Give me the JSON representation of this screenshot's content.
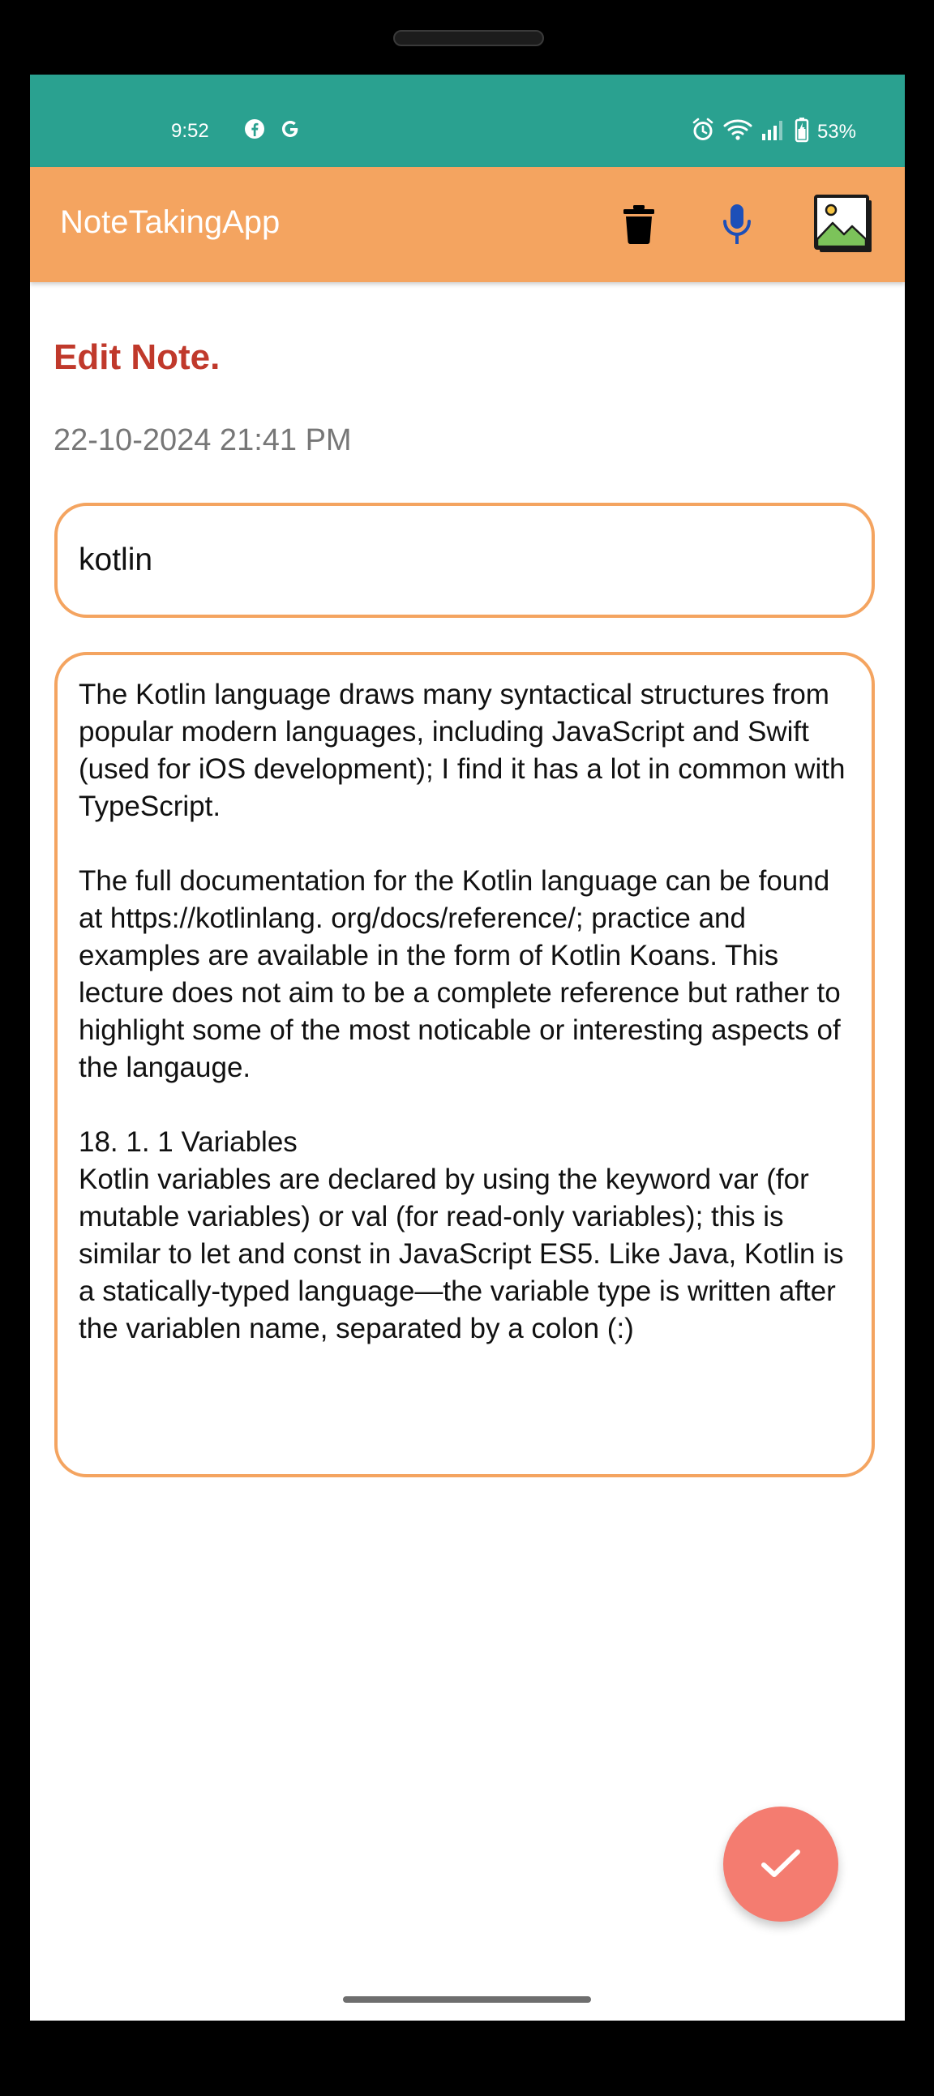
{
  "status_bar": {
    "time": "9:52",
    "app_icons": [
      "facebook-icon",
      "google-icon"
    ],
    "battery_text": "53%",
    "color": "#2aa190"
  },
  "app_bar": {
    "title": "NoteTakingApp",
    "color": "#f4a460",
    "actions": [
      "delete-icon",
      "microphone-icon",
      "image-icon"
    ]
  },
  "page": {
    "title": "Edit Note.",
    "timestamp": "22-10-2024 21:41 PM"
  },
  "note": {
    "title_value": "kotlin",
    "body": "The Kotlin language draws many syntactical structures from popular modern languages, including JavaScript and Swift (used for iOS development); I find it has a lot in common with TypeScript.\n\nThe full documentation for the Kotlin language can be found at https://kotlinlang. org/docs/reference/; practice and examples are available in the form of Kotlin Koans. This lecture does not aim to be a complete reference but rather to highlight some of the most noticable or interesting aspects of the langauge.\n\n18. 1. 1 Variables\nKotlin variables are declared by using the keyword var (for mutable variables) or val (for read-only variables); this is similar to let and const in JavaScript ES5. Like Java, Kotlin is a statically-typed language—the variable type is written after the variablen name, separated by a colon (:)"
  },
  "fab": {
    "icon": "check-icon",
    "color": "#f47c70"
  }
}
